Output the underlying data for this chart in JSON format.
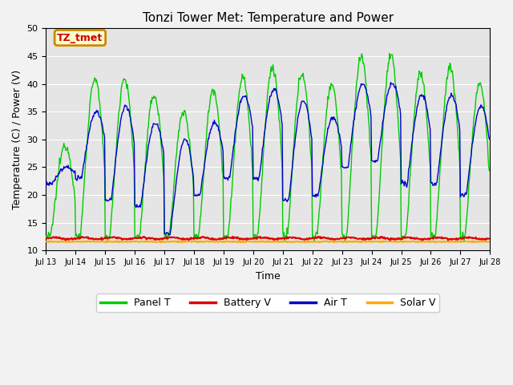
{
  "title": "Tonzi Tower Met: Temperature and Power",
  "xlabel": "Time",
  "ylabel": "Temperature (C) / Power (V)",
  "ylim": [
    10,
    50
  ],
  "x_start": 13,
  "x_end": 28,
  "plot_bg": "#e5e5e5",
  "fig_bg": "#f2f2f2",
  "annotation_text": "TZ_tmet",
  "annotation_fg": "#cc0000",
  "annotation_bg": "#ffffcc",
  "annotation_edge": "#cc8800",
  "panel_t_color": "#00cc00",
  "battery_v_color": "#dd0000",
  "air_t_color": "#0000cc",
  "solar_v_color": "#ffaa00",
  "grid_color": "#ffffff",
  "legend_labels": [
    "Panel T",
    "Battery V",
    "Air T",
    "Solar V"
  ],
  "legend_colors": [
    "#00cc00",
    "#dd0000",
    "#0000cc",
    "#ffaa00"
  ],
  "title_fontsize": 11,
  "axis_label_fontsize": 9,
  "tick_fontsize": 8,
  "legend_fontsize": 9,
  "yticks": [
    10,
    15,
    20,
    25,
    30,
    35,
    40,
    45,
    50
  ],
  "xticks": [
    13,
    14,
    15,
    16,
    17,
    18,
    19,
    20,
    21,
    22,
    23,
    24,
    25,
    26,
    27,
    28
  ],
  "panel_peaks": [
    29,
    41,
    41,
    38,
    35,
    39,
    41,
    43,
    42,
    40,
    45,
    45,
    42,
    43,
    40
  ],
  "air_peaks": [
    25,
    35,
    36,
    33,
    30,
    33,
    38,
    39,
    37,
    34,
    40,
    40,
    38,
    38,
    36
  ],
  "air_nights": [
    22,
    23,
    19,
    18,
    13,
    20,
    23,
    23,
    19,
    20,
    25,
    26,
    22,
    22,
    20
  ]
}
